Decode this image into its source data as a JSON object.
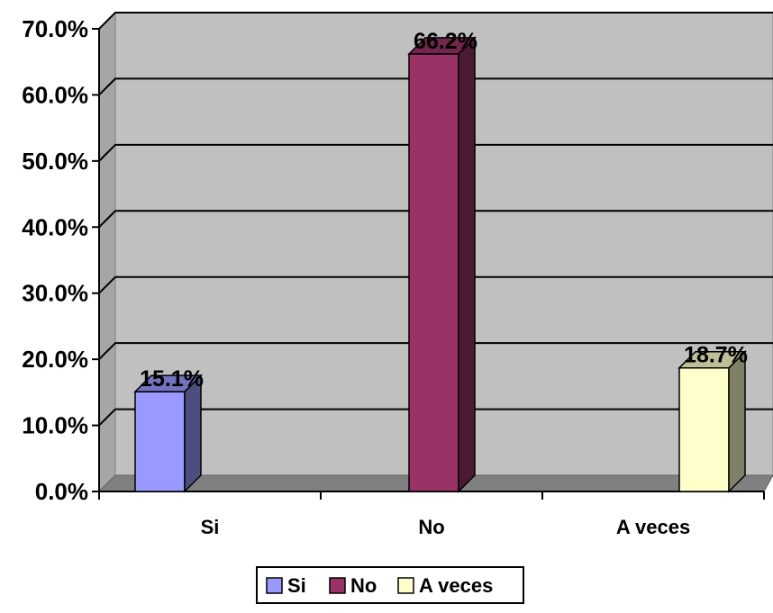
{
  "chart_data": {
    "type": "bar",
    "categories": [
      "Si",
      "No",
      "A veces"
    ],
    "series": [
      {
        "name": "Si",
        "category": "Si",
        "value": 15.1,
        "label": "15.1%",
        "color": "#9999ff"
      },
      {
        "name": "No",
        "category": "No",
        "value": 66.2,
        "label": "66.2%",
        "color": "#993366"
      },
      {
        "name": "A veces",
        "category": "A veces",
        "value": 18.7,
        "label": "18.7%",
        "color": "#ffffcc"
      }
    ],
    "ylim": [
      0,
      70
    ],
    "yticks": [
      0,
      10,
      20,
      30,
      40,
      50,
      60,
      70
    ],
    "ytick_labels": [
      "0.0%",
      "10.0%",
      "20.0%",
      "30.0%",
      "40.0%",
      "50.0%",
      "60.0%",
      "70.0%"
    ],
    "grid": true,
    "legend_position": "bottom",
    "plot_background": "#c0c0c0"
  }
}
